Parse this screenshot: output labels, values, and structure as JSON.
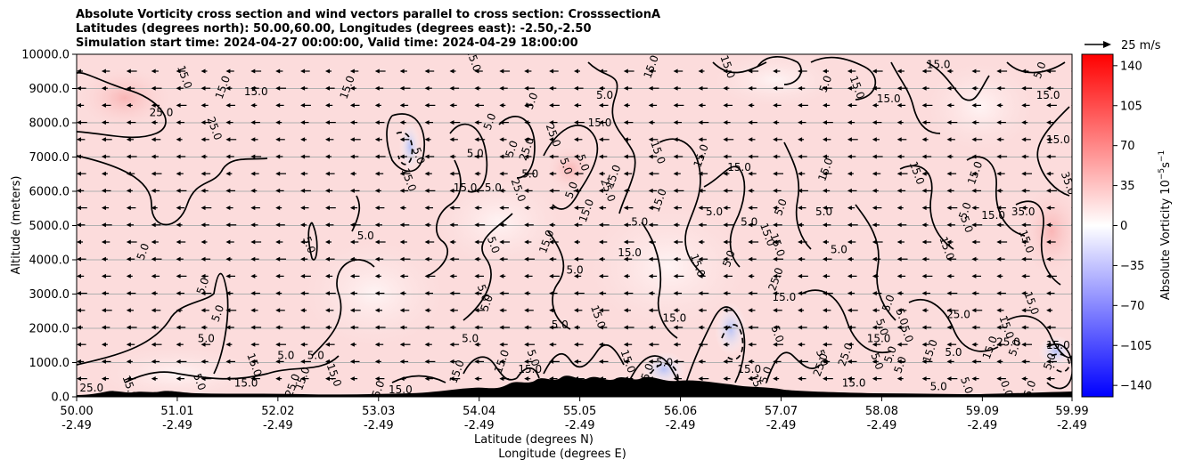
{
  "chart_data": {
    "type": "heatmap",
    "title_lines": [
      "Absolute Vorticity cross section and wind vectors parallel to cross section: CrosssectionA",
      "Latitudes (degrees north): 50.00,60.00, Longitudes (degrees east): -2.50,-2.50",
      "Simulation start time: 2024-04-27 00:00:00, Valid time: 2024-04-29 18:00:00"
    ],
    "xlabel_lines": [
      "Latitude (degrees N)",
      "Longitude (degrees E)"
    ],
    "ylabel": "Altitude (meters)",
    "x_range": [
      50.0,
      59.99
    ],
    "ylim": [
      0,
      10000
    ],
    "x_ticks": [
      {
        "lat": "50.00",
        "lon": "-2.49",
        "value": 50.0
      },
      {
        "lat": "51.01",
        "lon": "-2.49",
        "value": 51.01
      },
      {
        "lat": "52.02",
        "lon": "-2.49",
        "value": 52.02
      },
      {
        "lat": "53.03",
        "lon": "-2.49",
        "value": 53.03
      },
      {
        "lat": "54.04",
        "lon": "-2.49",
        "value": 54.04
      },
      {
        "lat": "55.05",
        "lon": "-2.49",
        "value": 55.05
      },
      {
        "lat": "56.06",
        "lon": "-2.49",
        "value": 56.06
      },
      {
        "lat": "57.07",
        "lon": "-2.49",
        "value": 57.07
      },
      {
        "lat": "58.08",
        "lon": "-2.49",
        "value": 58.08
      },
      {
        "lat": "59.09",
        "lon": "-2.49",
        "value": 59.09
      },
      {
        "lat": "59.99",
        "lon": "-2.49",
        "value": 59.99
      }
    ],
    "y_ticks": [
      {
        "label": "0.0",
        "value": 0
      },
      {
        "label": "1000.0",
        "value": 1000
      },
      {
        "label": "2000.0",
        "value": 2000
      },
      {
        "label": "3000.0",
        "value": 3000
      },
      {
        "label": "4000.0",
        "value": 4000
      },
      {
        "label": "5000.0",
        "value": 5000
      },
      {
        "label": "6000.0",
        "value": 6000
      },
      {
        "label": "7000.0",
        "value": 7000
      },
      {
        "label": "8000.0",
        "value": 8000
      },
      {
        "label": "9000.0",
        "value": 9000
      },
      {
        "label": "10000.0",
        "value": 10000
      }
    ],
    "colorbar": {
      "label": "Absolute Vorticity 10",
      "label_exp": "−5",
      "label_unit": "s",
      "label_unit_exp": "−1",
      "range": [
        -150,
        150
      ],
      "ticks": [
        {
          "label": "140",
          "value": 140
        },
        {
          "label": "105",
          "value": 105
        },
        {
          "label": "70",
          "value": 70
        },
        {
          "label": "35",
          "value": 35
        },
        {
          "label": "0",
          "value": 0
        },
        {
          "label": "−35",
          "value": -35
        },
        {
          "label": "−70",
          "value": -70
        },
        {
          "label": "−105",
          "value": -105
        },
        {
          "label": "−140",
          "value": -140
        }
      ],
      "colors": {
        "neg": "#0000ff",
        "mid": "#ffffff",
        "pos": "#ff0000"
      }
    },
    "quiver_key": {
      "label": "25 m/s",
      "value": 25
    },
    "wind_direction": "westward (toward decreasing latitude)",
    "contour_labels": [
      {
        "text": "25.0",
        "x": 50.15,
        "y": 150
      },
      {
        "text": "15.0",
        "x": 50.5,
        "y": 250
      },
      {
        "text": "5.0",
        "x": 50.7,
        "y": 4200
      },
      {
        "text": "25.0",
        "x": 50.85,
        "y": 8200
      },
      {
        "text": "15.0",
        "x": 51.05,
        "y": 9300
      },
      {
        "text": "5.0",
        "x": 51.3,
        "y": 3200
      },
      {
        "text": "5.0",
        "x": 51.3,
        "y": 1600
      },
      {
        "text": "5.0",
        "x": 51.2,
        "y": 400
      },
      {
        "text": "5.0",
        "x": 51.45,
        "y": 2400
      },
      {
        "text": "15.0",
        "x": 51.7,
        "y": 300
      },
      {
        "text": "25.0",
        "x": 51.35,
        "y": 7800
      },
      {
        "text": "15.0",
        "x": 51.5,
        "y": 9000
      },
      {
        "text": "15.0",
        "x": 51.8,
        "y": 8800
      },
      {
        "text": "15.0",
        "x": 51.75,
        "y": 900
      },
      {
        "text": "25.0",
        "x": 52.2,
        "y": 300
      },
      {
        "text": "5.0",
        "x": 52.1,
        "y": 1100
      },
      {
        "text": "5.0",
        "x": 52.3,
        "y": 4400
      },
      {
        "text": "15.0",
        "x": 52.3,
        "y": 500
      },
      {
        "text": "5.0",
        "x": 52.4,
        "y": 1100
      },
      {
        "text": "15.0",
        "x": 52.55,
        "y": 600
      },
      {
        "text": "15.0",
        "x": 52.75,
        "y": 9000
      },
      {
        "text": "5.0",
        "x": 52.9,
        "y": 4600
      },
      {
        "text": "15.0",
        "x": 53.3,
        "y": 6300
      },
      {
        "text": "15.0",
        "x": 53.05,
        "y": 100
      },
      {
        "text": "15.0",
        "x": 53.25,
        "y": 100
      },
      {
        "text": "5.0",
        "x": 53.4,
        "y": 7000
      },
      {
        "text": "15.0",
        "x": 53.85,
        "y": 700
      },
      {
        "text": "15.0",
        "x": 53.9,
        "y": 6000
      },
      {
        "text": "5.0",
        "x": 54.05,
        "y": 3000
      },
      {
        "text": "5.0",
        "x": 54.15,
        "y": 2700
      },
      {
        "text": "5.0",
        "x": 53.95,
        "y": 1600
      },
      {
        "text": "15.0",
        "x": 53.95,
        "y": 9800
      },
      {
        "text": "5.0",
        "x": 54.18,
        "y": 8000
      },
      {
        "text": "5.0",
        "x": 54.18,
        "y": 6000
      },
      {
        "text": "5.0",
        "x": 54.15,
        "y": 4400
      },
      {
        "text": "5.0",
        "x": 54.4,
        "y": 7200
      },
      {
        "text": "5.0",
        "x": 54.0,
        "y": 7000
      },
      {
        "text": "25.0",
        "x": 54.4,
        "y": 6000
      },
      {
        "text": "25.0",
        "x": 54.55,
        "y": 7200
      },
      {
        "text": "5.0",
        "x": 54.55,
        "y": 6400
      },
      {
        "text": "5.0",
        "x": 54.55,
        "y": 1100
      },
      {
        "text": "15.0",
        "x": 54.3,
        "y": 1000
      },
      {
        "text": "15.0",
        "x": 54.55,
        "y": 700
      },
      {
        "text": "25.0",
        "x": 54.75,
        "y": 7600
      },
      {
        "text": "5.0",
        "x": 54.6,
        "y": 8600
      },
      {
        "text": "5.0",
        "x": 54.85,
        "y": 2000
      },
      {
        "text": "5.0",
        "x": 54.88,
        "y": 6700
      },
      {
        "text": "5.0",
        "x": 55.0,
        "y": 6000
      },
      {
        "text": "15.0",
        "x": 55.25,
        "y": 7900
      },
      {
        "text": "25.0",
        "x": 55.3,
        "y": 6000
      },
      {
        "text": "15.0",
        "x": 55.15,
        "y": 5400
      },
      {
        "text": "5.0",
        "x": 55.3,
        "y": 8700
      },
      {
        "text": "15.0",
        "x": 55.2,
        "y": 2300
      },
      {
        "text": "15.0",
        "x": 54.75,
        "y": 4500
      },
      {
        "text": "5.0",
        "x": 55.0,
        "y": 3600
      },
      {
        "text": "15.0",
        "x": 55.5,
        "y": 1000
      },
      {
        "text": "15.0",
        "x": 55.42,
        "y": 6400
      },
      {
        "text": "15.0",
        "x": 55.55,
        "y": 4100
      },
      {
        "text": "5.0",
        "x": 55.05,
        "y": 6800
      },
      {
        "text": "15.0",
        "x": 55.8,
        "y": 9600
      },
      {
        "text": "5.0",
        "x": 55.65,
        "y": 5000
      },
      {
        "text": "15.0",
        "x": 55.8,
        "y": 7100
      },
      {
        "text": "15.0",
        "x": 55.88,
        "y": 5700
      },
      {
        "text": "15.0",
        "x": 56.0,
        "y": 2200
      },
      {
        "text": "15.0",
        "x": 56.2,
        "y": 3800
      },
      {
        "text": "15.0",
        "x": 56.3,
        "y": 7000
      },
      {
        "text": "5.0",
        "x": 56.4,
        "y": 5300
      },
      {
        "text": "15.0",
        "x": 56.5,
        "y": 9600
      },
      {
        "text": "5.0",
        "x": 56.58,
        "y": 4000
      },
      {
        "text": "5.0",
        "x": 56.75,
        "y": 5000
      },
      {
        "text": "15.0",
        "x": 56.9,
        "y": 4700
      },
      {
        "text": "5.0",
        "x": 57.1,
        "y": 5500
      },
      {
        "text": "15.0",
        "x": 56.65,
        "y": 6600
      },
      {
        "text": "15.0",
        "x": 57.0,
        "y": 4400
      },
      {
        "text": "25.0",
        "x": 57.05,
        "y": 3400
      },
      {
        "text": "15.0",
        "x": 57.1,
        "y": 2800
      },
      {
        "text": "5.0",
        "x": 57.0,
        "y": 1800
      },
      {
        "text": "15.0",
        "x": 57.55,
        "y": 6600
      },
      {
        "text": "5.0",
        "x": 57.5,
        "y": 5300
      },
      {
        "text": "15.0",
        "x": 57.8,
        "y": 9000
      },
      {
        "text": "5.0",
        "x": 57.55,
        "y": 9100
      },
      {
        "text": "15.0",
        "x": 58.05,
        "y": 1600
      },
      {
        "text": "5.0",
        "x": 58.05,
        "y": 2000
      },
      {
        "text": "25.0",
        "x": 57.75,
        "y": 1200
      },
      {
        "text": "5.0",
        "x": 57.65,
        "y": 4200
      },
      {
        "text": "5.0",
        "x": 58.25,
        "y": 2300
      },
      {
        "text": "5.0",
        "x": 58.18,
        "y": 2700
      },
      {
        "text": "15.0",
        "x": 58.15,
        "y": 8600
      },
      {
        "text": "5.0",
        "x": 58.3,
        "y": 1800
      },
      {
        "text": "5.0",
        "x": 58.2,
        "y": 1200
      },
      {
        "text": "15.0",
        "x": 58.65,
        "y": 9600
      },
      {
        "text": "15.0",
        "x": 58.4,
        "y": 6500
      },
      {
        "text": "15.0",
        "x": 58.6,
        "y": 1300
      },
      {
        "text": "5.0",
        "x": 58.8,
        "y": 1200
      },
      {
        "text": "15.0",
        "x": 58.7,
        "y": 4300
      },
      {
        "text": "5.0",
        "x": 58.3,
        "y": 900
      },
      {
        "text": "25.0",
        "x": 58.85,
        "y": 2300
      },
      {
        "text": "5.0",
        "x": 58.9,
        "y": 5000
      },
      {
        "text": "5.0",
        "x": 58.95,
        "y": 5400
      },
      {
        "text": "15.0",
        "x": 59.2,
        "y": 5200
      },
      {
        "text": "15.0",
        "x": 59.3,
        "y": 2000
      },
      {
        "text": "15.0",
        "x": 59.2,
        "y": 1400
      },
      {
        "text": "25.0",
        "x": 59.35,
        "y": 1500
      },
      {
        "text": "15.0",
        "x": 59.55,
        "y": 2700
      },
      {
        "text": "5.0",
        "x": 59.45,
        "y": 1400
      },
      {
        "text": "35.0",
        "x": 59.5,
        "y": 5300
      },
      {
        "text": "15.0",
        "x": 59.5,
        "y": 4500
      },
      {
        "text": "15.0",
        "x": 59.05,
        "y": 6500
      },
      {
        "text": "15.0",
        "x": 59.85,
        "y": 7400
      },
      {
        "text": "35.0",
        "x": 59.92,
        "y": 6200
      },
      {
        "text": "5.0",
        "x": 59.7,
        "y": 9500
      },
      {
        "text": "15.0",
        "x": 59.75,
        "y": 8700
      },
      {
        "text": "0.0",
        "x": 59.3,
        "y": 200
      },
      {
        "text": "5.0",
        "x": 59.6,
        "y": 200
      },
      {
        "text": "5.0",
        "x": 58.65,
        "y": 200
      },
      {
        "text": "5.0",
        "x": 58.9,
        "y": 300
      },
      {
        "text": "5.0",
        "x": 59.8,
        "y": 1000
      },
      {
        "text": "15.0",
        "x": 59.85,
        "y": 1400
      },
      {
        "text": "15.0",
        "x": 56.8,
        "y": 300
      },
      {
        "text": "5.0",
        "x": 56.95,
        "y": 600
      },
      {
        "text": "15.0",
        "x": 56.75,
        "y": 700
      },
      {
        "text": "5.0",
        "x": 57.45,
        "y": 1100
      },
      {
        "text": "25.0",
        "x": 57.5,
        "y": 900
      },
      {
        "text": "15.0",
        "x": 57.8,
        "y": 300
      },
      {
        "text": "5.0",
        "x": 58.0,
        "y": 1000
      },
      {
        "text": "15.0",
        "x": 55.75,
        "y": 600
      },
      {
        "text": "5.0",
        "x": 55.9,
        "y": 900
      }
    ]
  }
}
